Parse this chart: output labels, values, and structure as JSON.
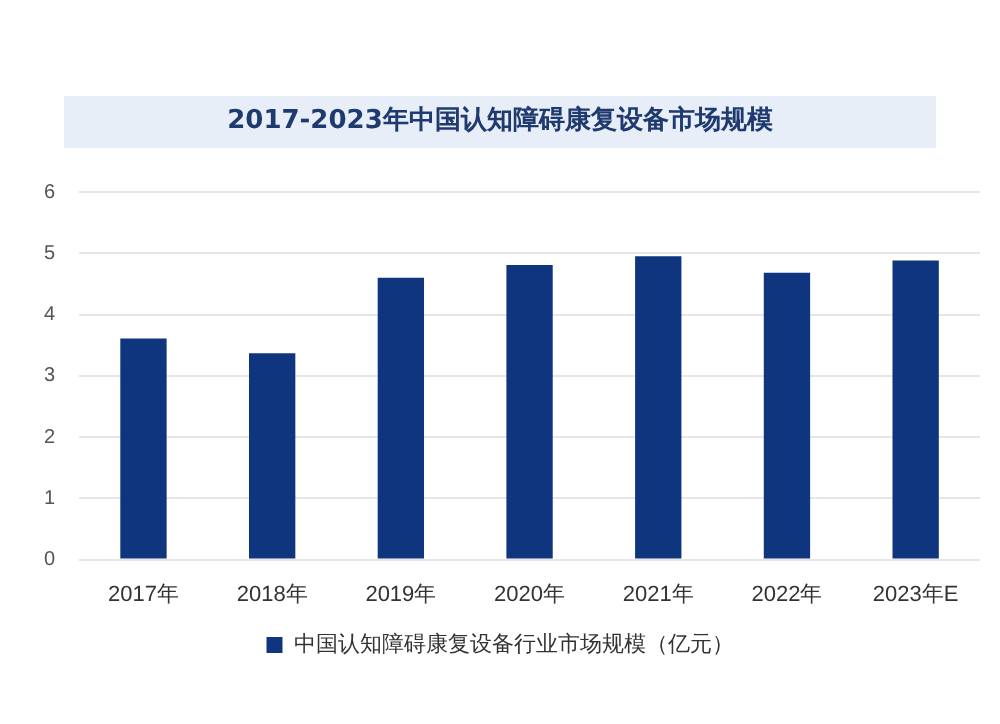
{
  "chart_data": {
    "type": "bar",
    "title": "2017-2023年中国认知障碍康复设备市场规模",
    "categories": [
      "2017年",
      "2018年",
      "2019年",
      "2020年",
      "2021年",
      "2022年",
      "2023年E"
    ],
    "series": [
      {
        "name": "中国认知障碍康复设备行业市场规模（亿元）",
        "color": "#10357f",
        "values": [
          3.61,
          3.37,
          4.6,
          4.81,
          4.95,
          4.68,
          4.88
        ]
      }
    ],
    "ylim": [
      0,
      6
    ],
    "yticks": [
      0,
      1,
      2,
      3,
      4,
      5,
      6
    ],
    "grid": "y",
    "legend": "bottom"
  }
}
